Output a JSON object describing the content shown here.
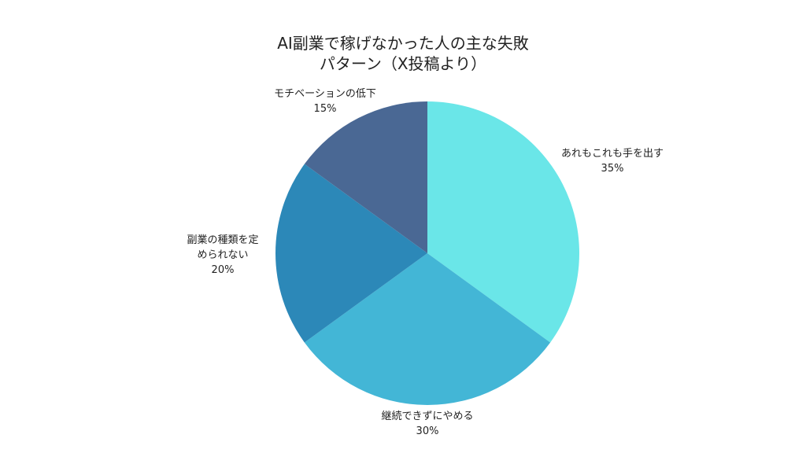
{
  "chart_data": {
    "type": "pie",
    "title_lines": [
      "AI副業で稼げなかった人の主な失敗",
      "パターン（X投稿より）"
    ],
    "start_angle_deg": 0,
    "direction": "clockwise",
    "slices": [
      {
        "label_lines": [
          "あれもこれも手を出す"
        ],
        "value": 35,
        "value_label": "35%",
        "color": "#6ae6e8"
      },
      {
        "label_lines": [
          "継続できずにやめる"
        ],
        "value": 30,
        "value_label": "30%",
        "color": "#43b6d6"
      },
      {
        "label_lines": [
          "副業の種類を定",
          "められない"
        ],
        "value": 20,
        "value_label": "20%",
        "color": "#2c88b8"
      },
      {
        "label_lines": [
          "モチベーションの低下"
        ],
        "value": 15,
        "value_label": "15%",
        "color": "#4a6894"
      }
    ]
  }
}
